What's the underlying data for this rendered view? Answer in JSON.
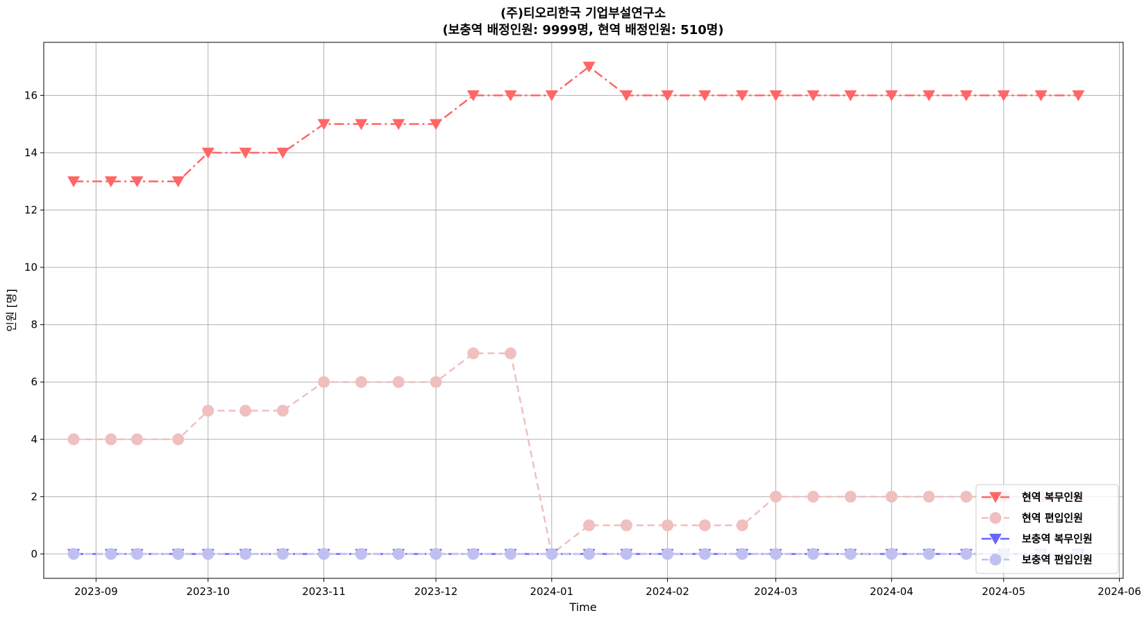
{
  "chart_data": {
    "type": "line",
    "title": [
      "(주)티오리한국 기업부설연구소",
      "(보충역 배정인원: 9999명, 현역 배정인원: 510명)"
    ],
    "xlabel": "Time",
    "ylabel": "인원 [명]",
    "x": [
      "2023-08-26",
      "2023-09-05",
      "2023-09-12",
      "2023-09-23",
      "2023-10-01",
      "2023-10-11",
      "2023-10-21",
      "2023-11-01",
      "2023-11-11",
      "2023-11-21",
      "2023-12-01",
      "2023-12-11",
      "2023-12-21",
      "2024-01-01",
      "2024-01-11",
      "2024-01-21",
      "2024-02-01",
      "2024-02-11",
      "2024-02-21",
      "2024-03-01",
      "2024-03-11",
      "2024-03-21",
      "2024-04-01",
      "2024-04-11",
      "2024-04-21",
      "2024-05-01",
      "2024-05-11",
      "2024-05-21"
    ],
    "xticks": [
      "2023-09",
      "2023-10",
      "2023-11",
      "2023-12",
      "2024-01",
      "2024-02",
      "2024-03",
      "2024-04",
      "2024-05",
      "2024-06"
    ],
    "yticks": [
      0,
      2,
      4,
      6,
      8,
      10,
      12,
      14,
      16
    ],
    "xlim": [
      "2023-08-18",
      "2024-06-02"
    ],
    "ylim": [
      -0.85,
      17.85
    ],
    "grid": true,
    "legend_position": "lower-right",
    "series": [
      {
        "name": "현역 복무인원",
        "color": "#ff6666",
        "marker": "triangle-down",
        "dash": "dashdot",
        "values": [
          13,
          13,
          13,
          13,
          14,
          14,
          14,
          15,
          15,
          15,
          15,
          16,
          16,
          16,
          17,
          16,
          16,
          16,
          16,
          16,
          16,
          16,
          16,
          16,
          16,
          16,
          16,
          16
        ]
      },
      {
        "name": "현역 편입인원",
        "color": "#f0bfbf",
        "marker": "circle",
        "dash": "dashed",
        "values": [
          4,
          4,
          4,
          4,
          5,
          5,
          5,
          6,
          6,
          6,
          6,
          7,
          7,
          0,
          1,
          1,
          1,
          1,
          1,
          2,
          2,
          2,
          2,
          2,
          2,
          2,
          2,
          2
        ]
      },
      {
        "name": "보충역 복무인원",
        "color": "#6666ff",
        "marker": "triangle-down",
        "dash": "dashdot",
        "values": [
          0,
          0,
          0,
          0,
          0,
          0,
          0,
          0,
          0,
          0,
          0,
          0,
          0,
          0,
          0,
          0,
          0,
          0,
          0,
          0,
          0,
          0,
          0,
          0,
          0,
          0,
          0,
          0
        ]
      },
      {
        "name": "보충역 편입인원",
        "color": "#c0c0f0",
        "marker": "circle",
        "dash": "dashed",
        "values": [
          0,
          0,
          0,
          0,
          0,
          0,
          0,
          0,
          0,
          0,
          0,
          0,
          0,
          0,
          0,
          0,
          0,
          0,
          0,
          0,
          0,
          0,
          0,
          0,
          0,
          0,
          0,
          0
        ]
      }
    ]
  }
}
